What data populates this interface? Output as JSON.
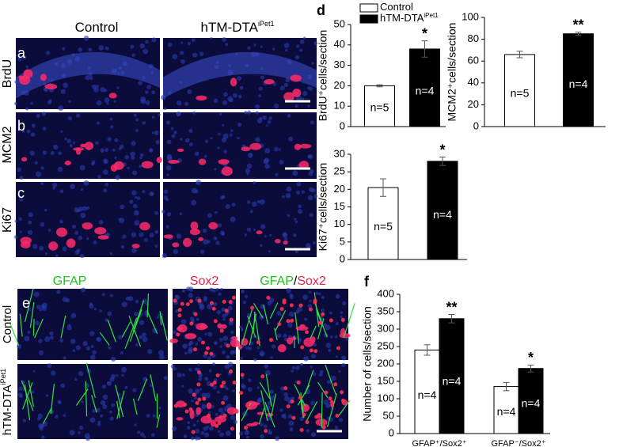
{
  "figure": {
    "panel_labels": [
      "a",
      "b",
      "c",
      "d",
      "e",
      "f"
    ],
    "columns_abc": [
      {
        "text": "Control"
      },
      {
        "text": "hTM-DTA",
        "sup": "iPet1"
      }
    ],
    "rows_abc": [
      "BrdU",
      "MCM2",
      "Ki67"
    ],
    "columns_e": [
      [
        "GFAP"
      ],
      [
        "Sox2"
      ],
      [
        "GFAP",
        "/",
        "Sox2"
      ]
    ],
    "rows_e": [
      {
        "text": "Control"
      },
      {
        "text": "hTM-DTA",
        "sup": "iPet1"
      }
    ]
  },
  "chart_data": [
    {
      "type": "bar",
      "ylabel": "BrdU⁺cells/section",
      "categories": [
        null
      ],
      "ylim": [
        0,
        50
      ],
      "yticks": [
        0,
        10,
        20,
        30,
        40,
        50
      ],
      "legend": "top-left",
      "series": [
        {
          "name": "Control",
          "color": "#ffffff",
          "values": [
            20
          ],
          "errors": [
            0.5
          ],
          "n_labels": [
            "n=5"
          ]
        },
        {
          "name": "hTM-DTA",
          "name_sup": "iPet1",
          "color": "#000000",
          "values": [
            38
          ],
          "errors": [
            4
          ],
          "n_labels": [
            "n=4"
          ],
          "significance": [
            "*"
          ]
        }
      ]
    },
    {
      "type": "bar",
      "ylabel": "MCM2⁺cells/section",
      "categories": [
        null
      ],
      "ylim": [
        0,
        100
      ],
      "yticks": [
        0,
        20,
        40,
        60,
        80,
        100
      ],
      "series": [
        {
          "color": "#ffffff",
          "values": [
            66
          ],
          "errors": [
            3
          ],
          "n_labels": [
            "n=5"
          ]
        },
        {
          "color": "#000000",
          "values": [
            85
          ],
          "errors": [
            1.5
          ],
          "n_labels": [
            "n=4"
          ],
          "significance": [
            "**"
          ]
        }
      ]
    },
    {
      "type": "bar",
      "ylabel": "Ki67⁺cells/section",
      "categories": [
        null
      ],
      "ylim": [
        0,
        30
      ],
      "yticks": [
        0,
        5,
        10,
        15,
        20,
        25,
        30
      ],
      "series": [
        {
          "color": "#ffffff",
          "values": [
            20.5
          ],
          "errors": [
            2.5
          ],
          "n_labels": [
            "n=5"
          ]
        },
        {
          "color": "#000000",
          "values": [
            28
          ],
          "errors": [
            1.2
          ],
          "n_labels": [
            "n=4"
          ],
          "significance": [
            "*"
          ]
        }
      ]
    },
    {
      "type": "bar",
      "ylabel": "Number of cells/section",
      "categories": [
        "GFAP⁺/Sox2⁺",
        "GFAP⁻/Sox2⁺"
      ],
      "ylim": [
        0,
        400
      ],
      "yticks": [
        0,
        50,
        100,
        150,
        200,
        250,
        300,
        350,
        400
      ],
      "series": [
        {
          "color": "#ffffff",
          "values": [
            240,
            135
          ],
          "errors": [
            15,
            12
          ],
          "n_labels": [
            "n=4",
            "n=4"
          ]
        },
        {
          "color": "#000000",
          "values": [
            330,
            187
          ],
          "errors": [
            12,
            10
          ],
          "n_labels": [
            "n=4",
            "n=4"
          ],
          "significance": [
            "**",
            "*"
          ]
        }
      ]
    }
  ]
}
